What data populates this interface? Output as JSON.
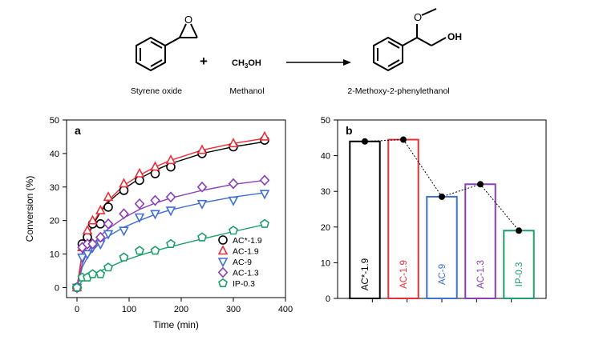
{
  "reaction": {
    "reactant1_label": "Styrene oxide",
    "reactant2_formula_prefix": "CH",
    "reactant2_formula_sub": "3",
    "reactant2_formula_suffix": "OH",
    "reactant2_label": "Methanol",
    "plus_sign": "+",
    "product_label": "2-Methoxy-2-phenylethanol",
    "oxygen_atom": "O",
    "hydroxyl_group": "OH"
  },
  "chart_data": [
    {
      "type": "scatter",
      "panel_label": "a",
      "xlabel": "Time (min)",
      "ylabel": "Conversion (%)",
      "xlim": [
        -20,
        400
      ],
      "ylim": [
        -3,
        50
      ],
      "xticks": [
        0,
        100,
        200,
        300,
        400
      ],
      "yticks": [
        0,
        10,
        20,
        30,
        40,
        50
      ],
      "legend_position": "bottom-right",
      "series": [
        {
          "name": "AC*-1.9",
          "marker": "circle",
          "color": "#000000",
          "x": [
            0,
            10,
            20,
            30,
            45,
            60,
            90,
            120,
            150,
            180,
            240,
            300,
            360
          ],
          "y": [
            0,
            13,
            15,
            19,
            19,
            24,
            29,
            32,
            34,
            36,
            40,
            42,
            44
          ],
          "fit": [
            [
              0,
              0
            ],
            [
              10,
              10
            ],
            [
              20,
              15
            ],
            [
              30,
              18.5
            ],
            [
              45,
              22.5
            ],
            [
              60,
              25.5
            ],
            [
              90,
              29.5
            ],
            [
              120,
              32.5
            ],
            [
              150,
              35
            ],
            [
              180,
              37
            ],
            [
              240,
              40
            ],
            [
              300,
              42
            ],
            [
              360,
              43.5
            ]
          ]
        },
        {
          "name": "AC-1.9",
          "marker": "triangle-up",
          "color": "#e8303a",
          "x": [
            0,
            10,
            20,
            30,
            45,
            60,
            90,
            120,
            150,
            180,
            240,
            300,
            360
          ],
          "y": [
            0,
            12,
            17,
            20,
            23,
            27,
            31,
            34,
            36,
            38,
            41,
            43,
            45
          ],
          "fit": [
            [
              0,
              0
            ],
            [
              10,
              10.5
            ],
            [
              20,
              15.5
            ],
            [
              30,
              19
            ],
            [
              45,
              23
            ],
            [
              60,
              26
            ],
            [
              90,
              30.5
            ],
            [
              120,
              33.5
            ],
            [
              150,
              36
            ],
            [
              180,
              38
            ],
            [
              240,
              41
            ],
            [
              300,
              43
            ],
            [
              360,
              44.5
            ]
          ]
        },
        {
          "name": "AC-9",
          "marker": "triangle-down",
          "color": "#3f6fd0",
          "x": [
            0,
            10,
            20,
            30,
            45,
            60,
            90,
            120,
            150,
            180,
            240,
            300,
            360
          ],
          "y": [
            0,
            9,
            10,
            12,
            13,
            16,
            17,
            21,
            22,
            23,
            25,
            26,
            28
          ],
          "fit": [
            [
              0,
              0
            ],
            [
              10,
              6
            ],
            [
              20,
              9
            ],
            [
              30,
              11
            ],
            [
              45,
              13.5
            ],
            [
              60,
              15.3
            ],
            [
              90,
              18
            ],
            [
              120,
              20
            ],
            [
              150,
              21.8
            ],
            [
              180,
              23.2
            ],
            [
              240,
              25.3
            ],
            [
              300,
              27
            ],
            [
              360,
              28.3
            ]
          ]
        },
        {
          "name": "AC-1.3",
          "marker": "diamond",
          "color": "#8a3fb5",
          "x": [
            0,
            10,
            20,
            30,
            45,
            60,
            90,
            120,
            150,
            180,
            240,
            300,
            360
          ],
          "y": [
            0,
            12,
            13,
            13,
            15,
            19,
            22,
            25,
            26,
            27,
            30,
            31,
            32
          ],
          "fit": [
            [
              0,
              0
            ],
            [
              10,
              7
            ],
            [
              20,
              10.5
            ],
            [
              30,
              12.8
            ],
            [
              45,
              15.5
            ],
            [
              60,
              17.5
            ],
            [
              90,
              20.8
            ],
            [
              120,
              23.3
            ],
            [
              150,
              25.2
            ],
            [
              180,
              26.7
            ],
            [
              240,
              29
            ],
            [
              300,
              30.8
            ],
            [
              360,
              32
            ]
          ]
        },
        {
          "name": "IP-0.3",
          "marker": "pentagon",
          "color": "#1e9e68",
          "x": [
            0,
            10,
            20,
            30,
            45,
            60,
            90,
            120,
            150,
            180,
            240,
            300,
            360
          ],
          "y": [
            0,
            3,
            3,
            4,
            4,
            6,
            9,
            11,
            11,
            13,
            15,
            17,
            19
          ],
          "fit": [
            [
              0,
              0
            ],
            [
              10,
              2
            ],
            [
              20,
              3
            ],
            [
              30,
              3.8
            ],
            [
              45,
              5
            ],
            [
              60,
              6
            ],
            [
              90,
              8
            ],
            [
              120,
              9.6
            ],
            [
              150,
              11
            ],
            [
              180,
              12.2
            ],
            [
              240,
              14.5
            ],
            [
              300,
              16.7
            ],
            [
              360,
              18.8
            ]
          ]
        }
      ]
    },
    {
      "type": "bar",
      "panel_label": "b",
      "ylim": [
        0,
        50
      ],
      "yticks": [
        0,
        10,
        20,
        30,
        40,
        50
      ],
      "categories": [
        "AC*-1.9",
        "AC-1.9",
        "AC-9",
        "AC-1.3",
        "IP-0.3"
      ],
      "values": [
        44,
        44.5,
        28.5,
        32,
        19
      ],
      "colors": [
        "#000000",
        "#e8303a",
        "#3f6fd0",
        "#8a3fb5",
        "#1e9e68"
      ],
      "dotted_line_through_points": true
    }
  ]
}
